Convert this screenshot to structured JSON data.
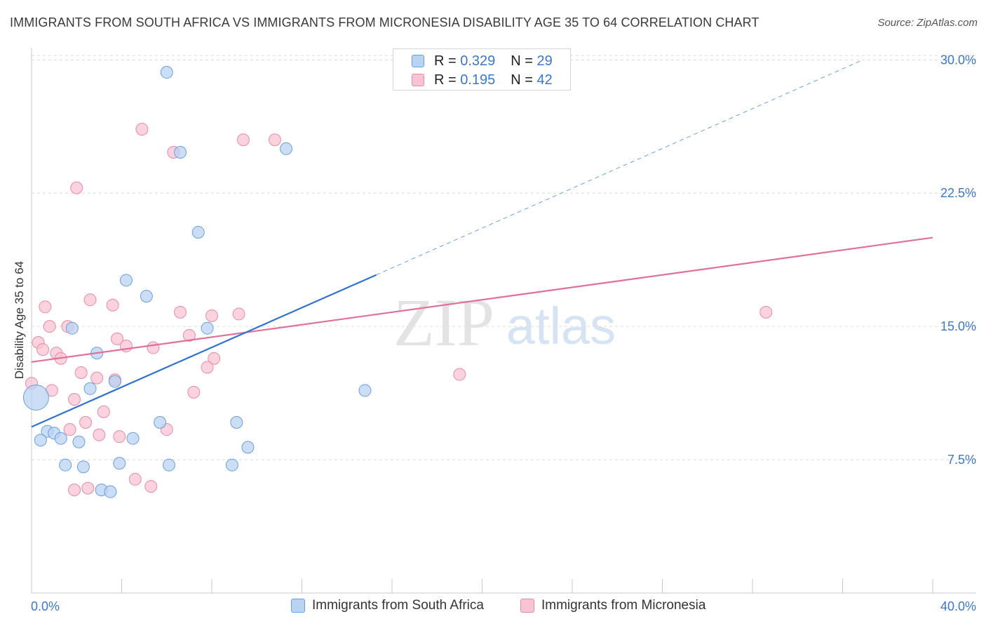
{
  "header": {
    "title": "IMMIGRANTS FROM SOUTH AFRICA VS IMMIGRANTS FROM MICRONESIA DISABILITY AGE 35 TO 64 CORRELATION CHART",
    "source": "Source: ZipAtlas.com"
  },
  "legend": {
    "r_label": "R =",
    "n_label": "N =",
    "rows": [
      {
        "r": "0.329",
        "n": "29"
      },
      {
        "r": "0.195",
        "n": "42"
      }
    ]
  },
  "watermark": {
    "zip": "ZIP",
    "atlas": "atlas"
  },
  "colors": {
    "blue_fill": "#b9d3f3",
    "blue_stroke": "#6a9fde",
    "blue_line": "#2f72cf",
    "pink_fill": "#f8c4d3",
    "pink_stroke": "#e88aa6",
    "pink_line": "#e0709a",
    "tick_text": "#3b78c8",
    "grid": "#d9d9d9"
  },
  "chart_data": {
    "type": "scatter",
    "title": "IMMIGRANTS FROM SOUTH AFRICA VS IMMIGRANTS FROM MICRONESIA DISABILITY AGE 35 TO 64 CORRELATION CHART",
    "xlabel": "",
    "ylabel": "Disability Age 35 to 64",
    "xlim": [
      0,
      40
    ],
    "ylim": [
      0,
      31
    ],
    "x_tick_labels": [
      "0.0%",
      "40.0%"
    ],
    "y_ticks": [
      7.5,
      15.0,
      22.5,
      30.0
    ],
    "y_tick_labels": [
      "7.5%",
      "15.0%",
      "22.5%",
      "30.0%"
    ],
    "grid": true,
    "series": [
      {
        "name": "Immigrants from South Africa",
        "color": "blue",
        "points": [
          [
            6.0,
            29.3
          ],
          [
            6.6,
            24.8
          ],
          [
            11.3,
            25.0
          ],
          [
            7.4,
            20.3
          ],
          [
            4.2,
            17.6
          ],
          [
            5.1,
            16.7
          ],
          [
            1.8,
            14.9
          ],
          [
            7.8,
            14.9
          ],
          [
            2.9,
            13.5
          ],
          [
            3.7,
            11.9
          ],
          [
            2.6,
            11.5
          ],
          [
            14.8,
            11.4
          ],
          [
            0.2,
            11.0
          ],
          [
            0.7,
            9.1
          ],
          [
            1.0,
            9.0
          ],
          [
            0.4,
            8.6
          ],
          [
            1.3,
            8.7
          ],
          [
            2.1,
            8.5
          ],
          [
            5.7,
            9.6
          ],
          [
            9.1,
            9.6
          ],
          [
            4.5,
            8.7
          ],
          [
            9.6,
            8.2
          ],
          [
            1.5,
            7.2
          ],
          [
            2.3,
            7.1
          ],
          [
            3.9,
            7.3
          ],
          [
            6.1,
            7.2
          ],
          [
            8.9,
            7.2
          ],
          [
            3.1,
            5.8
          ],
          [
            3.5,
            5.7
          ]
        ],
        "trend": {
          "x": [
            0,
            15.3
          ],
          "y": [
            9.35,
            17.9
          ]
        },
        "trend_extension": {
          "x": [
            15.3,
            36.9
          ],
          "y": [
            17.9,
            30.0
          ]
        }
      },
      {
        "name": "Immigrants from Micronesia",
        "color": "pink",
        "points": [
          [
            4.9,
            26.1
          ],
          [
            9.4,
            25.5
          ],
          [
            10.8,
            25.5
          ],
          [
            6.3,
            24.8
          ],
          [
            2.0,
            22.8
          ],
          [
            2.6,
            16.5
          ],
          [
            3.6,
            16.2
          ],
          [
            0.6,
            16.1
          ],
          [
            6.6,
            15.8
          ],
          [
            8.0,
            15.6
          ],
          [
            9.2,
            15.7
          ],
          [
            32.6,
            15.8
          ],
          [
            0.8,
            15.0
          ],
          [
            1.6,
            15.0
          ],
          [
            7.0,
            14.5
          ],
          [
            3.8,
            14.3
          ],
          [
            0.3,
            14.1
          ],
          [
            4.2,
            13.9
          ],
          [
            0.5,
            13.7
          ],
          [
            5.4,
            13.8
          ],
          [
            1.1,
            13.5
          ],
          [
            1.3,
            13.2
          ],
          [
            8.1,
            13.2
          ],
          [
            7.8,
            12.7
          ],
          [
            2.2,
            12.4
          ],
          [
            2.9,
            12.1
          ],
          [
            3.7,
            12.0
          ],
          [
            19.0,
            12.3
          ],
          [
            0.0,
            11.8
          ],
          [
            0.9,
            11.4
          ],
          [
            7.2,
            11.3
          ],
          [
            1.9,
            10.9
          ],
          [
            3.2,
            10.2
          ],
          [
            2.4,
            9.6
          ],
          [
            1.7,
            9.2
          ],
          [
            6.0,
            9.2
          ],
          [
            3.0,
            8.9
          ],
          [
            3.9,
            8.8
          ],
          [
            4.6,
            6.4
          ],
          [
            5.3,
            6.0
          ],
          [
            2.5,
            5.9
          ],
          [
            1.9,
            5.8
          ]
        ],
        "trend": {
          "x": [
            0,
            40
          ],
          "y": [
            13.0,
            20.0
          ]
        }
      }
    ]
  },
  "bottom_legend": {
    "items": [
      {
        "label": "Immigrants from South Africa"
      },
      {
        "label": "Immigrants from Micronesia"
      }
    ]
  }
}
